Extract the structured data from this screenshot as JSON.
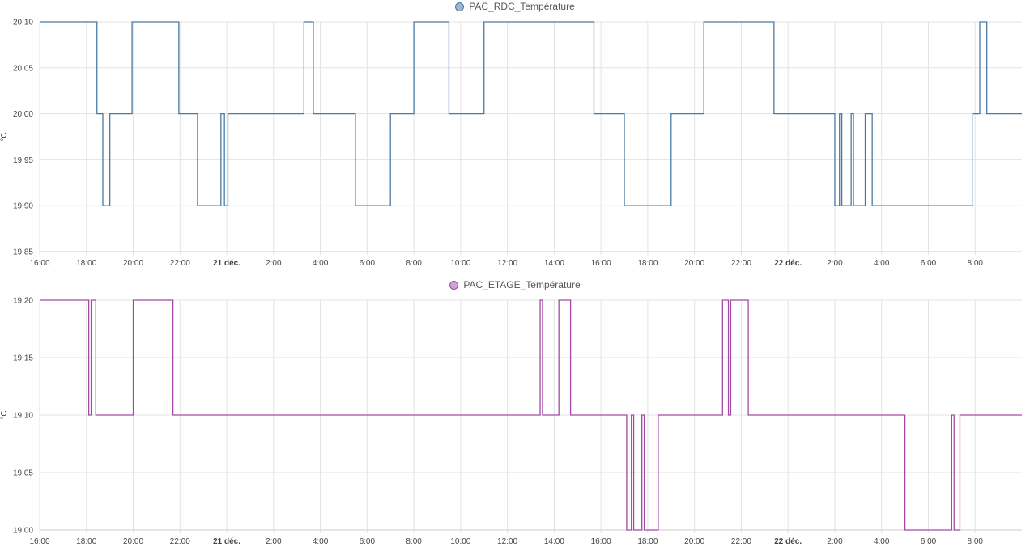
{
  "chart_data": [
    {
      "type": "line",
      "step": true,
      "legend_position": "top-center",
      "grid": true,
      "ylabel": "°C",
      "ylim": [
        19.85,
        20.1
      ],
      "yticks": [
        "20,10",
        "20,05",
        "20,00",
        "19,95",
        "19,90",
        "19,85"
      ],
      "yticks_values": [
        20.1,
        20.05,
        20.0,
        19.95,
        19.9,
        19.85
      ],
      "xlim": [
        0,
        42
      ],
      "xticks": [
        {
          "label": "16:00",
          "h": 0
        },
        {
          "label": "18:00",
          "h": 2
        },
        {
          "label": "20:00",
          "h": 4
        },
        {
          "label": "22:00",
          "h": 6
        },
        {
          "label": "21 déc.",
          "h": 8,
          "bold": true
        },
        {
          "label": "2:00",
          "h": 10
        },
        {
          "label": "4:00",
          "h": 12
        },
        {
          "label": "6:00",
          "h": 14
        },
        {
          "label": "8:00",
          "h": 16
        },
        {
          "label": "10:00",
          "h": 18
        },
        {
          "label": "12:00",
          "h": 20
        },
        {
          "label": "14:00",
          "h": 22
        },
        {
          "label": "16:00",
          "h": 24
        },
        {
          "label": "18:00",
          "h": 26
        },
        {
          "label": "20:00",
          "h": 28
        },
        {
          "label": "22:00",
          "h": 30
        },
        {
          "label": "22 déc.",
          "h": 32,
          "bold": true
        },
        {
          "label": "2:00",
          "h": 34
        },
        {
          "label": "4:00",
          "h": 36
        },
        {
          "label": "6:00",
          "h": 38
        },
        {
          "label": "8:00",
          "h": 40
        }
      ],
      "series": [
        {
          "name": "PAC_RDC_Température",
          "color": "#4a7aa3",
          "swatch_fill": "#9fb6cc",
          "points": [
            [
              0,
              20.1
            ],
            [
              2.45,
              20.0
            ],
            [
              2.7,
              19.9
            ],
            [
              3.0,
              20.0
            ],
            [
              3.95,
              20.1
            ],
            [
              5.95,
              20.0
            ],
            [
              6.75,
              19.9
            ],
            [
              7.75,
              20.0
            ],
            [
              7.9,
              19.9
            ],
            [
              8.05,
              20.0
            ],
            [
              11.3,
              20.1
            ],
            [
              11.7,
              20.0
            ],
            [
              13.5,
              19.9
            ],
            [
              15.0,
              20.0
            ],
            [
              16.0,
              20.1
            ],
            [
              17.5,
              20.0
            ],
            [
              19.0,
              20.1
            ],
            [
              23.7,
              20.0
            ],
            [
              25.0,
              19.9
            ],
            [
              27.0,
              20.0
            ],
            [
              28.4,
              20.1
            ],
            [
              31.4,
              20.0
            ],
            [
              34.0,
              19.9
            ],
            [
              34.2,
              20.0
            ],
            [
              34.3,
              19.9
            ],
            [
              34.7,
              20.0
            ],
            [
              34.8,
              19.9
            ],
            [
              35.3,
              20.0
            ],
            [
              35.6,
              19.9
            ],
            [
              39.9,
              20.0
            ],
            [
              40.2,
              20.1
            ],
            [
              40.5,
              20.0
            ],
            [
              42.0,
              20.0
            ]
          ]
        }
      ]
    },
    {
      "type": "line",
      "step": true,
      "legend_position": "top-center",
      "grid": true,
      "ylabel": "°C",
      "ylim": [
        19.0,
        19.2
      ],
      "yticks": [
        "19,20",
        "19,15",
        "19,10",
        "19,05",
        "19,00"
      ],
      "yticks_values": [
        19.2,
        19.15,
        19.1,
        19.05,
        19.0
      ],
      "xlim": [
        0,
        42
      ],
      "xticks": [
        {
          "label": "16:00",
          "h": 0
        },
        {
          "label": "18:00",
          "h": 2
        },
        {
          "label": "20:00",
          "h": 4
        },
        {
          "label": "22:00",
          "h": 6
        },
        {
          "label": "21 déc.",
          "h": 8,
          "bold": true
        },
        {
          "label": "2:00",
          "h": 10
        },
        {
          "label": "4:00",
          "h": 12
        },
        {
          "label": "6:00",
          "h": 14
        },
        {
          "label": "8:00",
          "h": 16
        },
        {
          "label": "10:00",
          "h": 18
        },
        {
          "label": "12:00",
          "h": 20
        },
        {
          "label": "14:00",
          "h": 22
        },
        {
          "label": "16:00",
          "h": 24
        },
        {
          "label": "18:00",
          "h": 26
        },
        {
          "label": "20:00",
          "h": 28
        },
        {
          "label": "22:00",
          "h": 30
        },
        {
          "label": "22 déc.",
          "h": 32,
          "bold": true
        },
        {
          "label": "2:00",
          "h": 34
        },
        {
          "label": "4:00",
          "h": 36
        },
        {
          "label": "6:00",
          "h": 38
        },
        {
          "label": "8:00",
          "h": 40
        }
      ],
      "series": [
        {
          "name": "PAC_ETAGE_Température",
          "color": "#a349a4",
          "swatch_fill": "#cfa3d6",
          "points": [
            [
              0,
              19.2
            ],
            [
              2.1,
              19.1
            ],
            [
              2.2,
              19.2
            ],
            [
              2.4,
              19.1
            ],
            [
              4.0,
              19.2
            ],
            [
              5.7,
              19.1
            ],
            [
              21.4,
              19.2
            ],
            [
              21.5,
              19.1
            ],
            [
              22.2,
              19.2
            ],
            [
              22.7,
              19.1
            ],
            [
              25.1,
              19.0
            ],
            [
              25.3,
              19.1
            ],
            [
              25.4,
              19.0
            ],
            [
              25.75,
              19.1
            ],
            [
              25.85,
              19.0
            ],
            [
              26.45,
              19.1
            ],
            [
              29.2,
              19.2
            ],
            [
              29.45,
              19.1
            ],
            [
              29.55,
              19.2
            ],
            [
              30.3,
              19.1
            ],
            [
              37.0,
              19.0
            ],
            [
              39.0,
              19.1
            ],
            [
              39.1,
              19.0
            ],
            [
              39.35,
              19.1
            ],
            [
              42.0,
              19.1
            ]
          ]
        }
      ]
    }
  ]
}
